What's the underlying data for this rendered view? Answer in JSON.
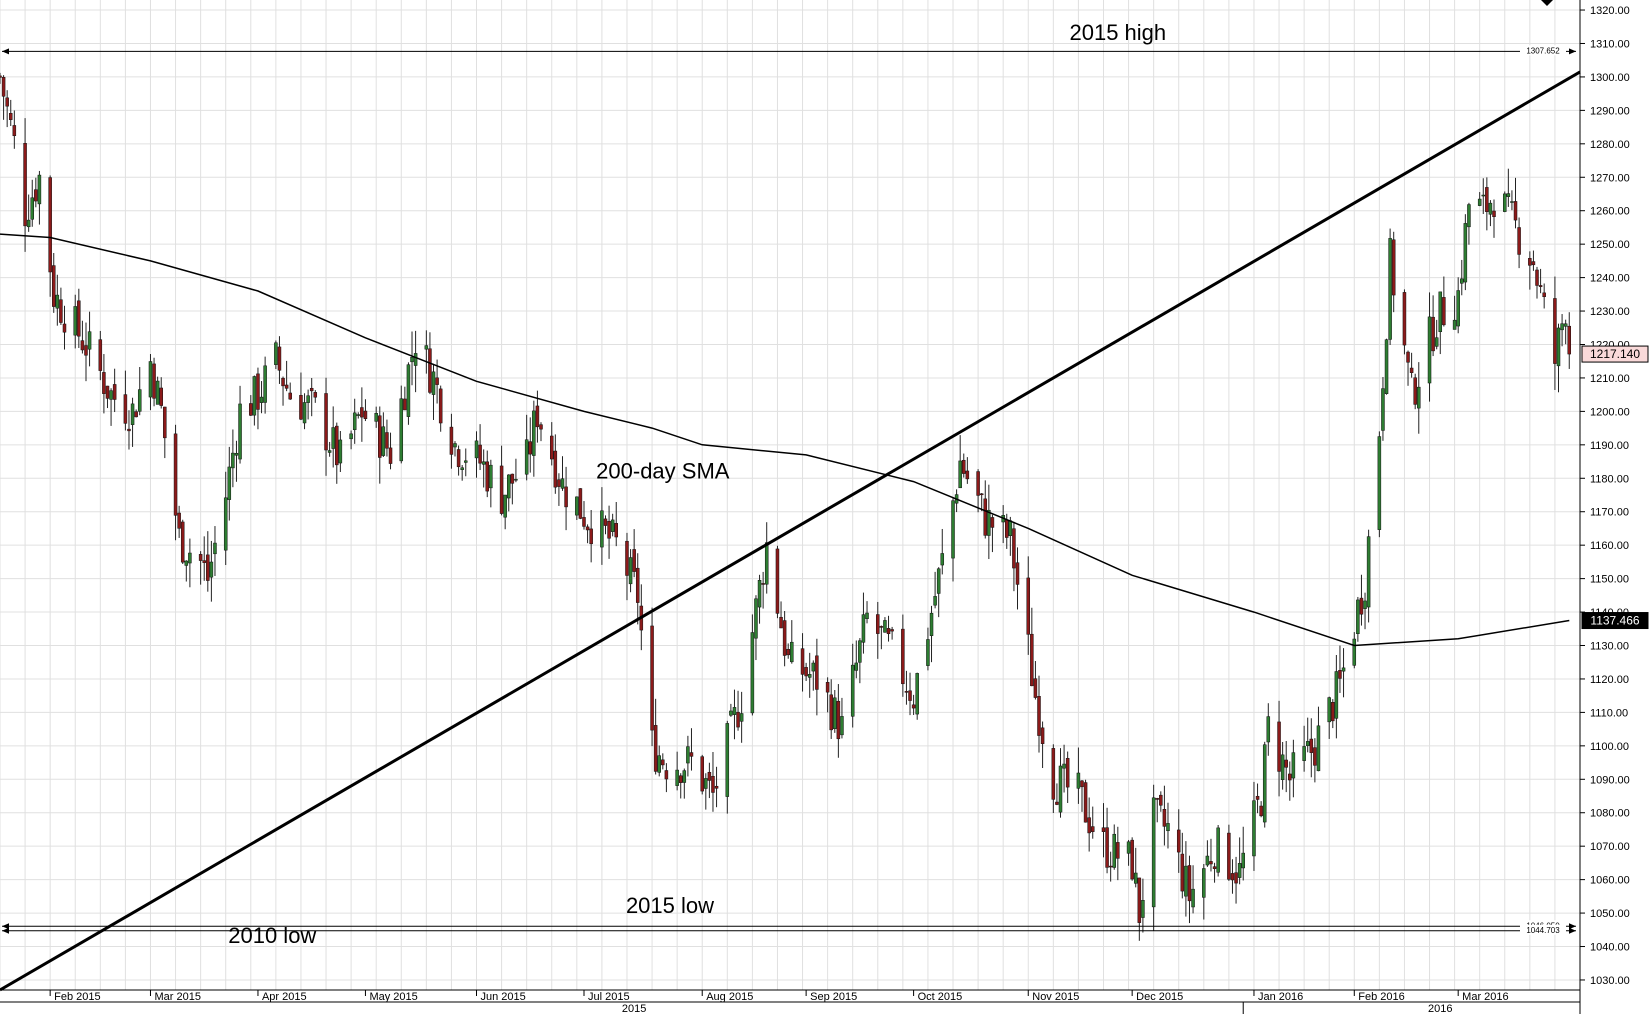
{
  "chart_data": {
    "type": "candlestick",
    "title": "",
    "xlabel": "",
    "ylabel": "",
    "ylim": [
      1027,
      1323
    ],
    "grid": true,
    "y_ticks": [
      1030,
      1040,
      1050,
      1060,
      1070,
      1080,
      1090,
      1100,
      1110,
      1120,
      1130,
      1140,
      1150,
      1160,
      1170,
      1180,
      1190,
      1200,
      1210,
      1220,
      1230,
      1240,
      1250,
      1260,
      1270,
      1280,
      1290,
      1300,
      1310,
      1320
    ],
    "y_tick_labels": [
      "1030.00",
      "1040.00",
      "1050.00",
      "1060.00",
      "1070.00",
      "1080.00",
      "1090.00",
      "1100.00",
      "1110.00",
      "1120.00",
      "1130.00",
      "1140.00",
      "1150.00",
      "1160.00",
      "1170.00",
      "1180.00",
      "1190.00",
      "1200.00",
      "1210.00",
      "1220.00",
      "1230.00",
      "1240.00",
      "1250.00",
      "1260.00",
      "1270.00",
      "1280.00",
      "1290.00",
      "1300.00",
      "1310.00",
      "1320.00"
    ],
    "x_range": [
      "2015-01-19",
      "2016-04-04"
    ],
    "month_ticks": [
      {
        "date": "2015-02-02",
        "label": "Feb 2015"
      },
      {
        "date": "2015-03-02",
        "label": "Mar 2015"
      },
      {
        "date": "2015-04-01",
        "label": "Apr 2015"
      },
      {
        "date": "2015-05-01",
        "label": "May 2015"
      },
      {
        "date": "2015-06-01",
        "label": "Jun 2015"
      },
      {
        "date": "2015-07-01",
        "label": "Jul 2015"
      },
      {
        "date": "2015-08-03",
        "label": "Aug 2015"
      },
      {
        "date": "2015-09-01",
        "label": "Sep 2015"
      },
      {
        "date": "2015-10-01",
        "label": "Oct 2015"
      },
      {
        "date": "2015-11-02",
        "label": "Nov 2015"
      },
      {
        "date": "2015-12-01",
        "label": "Dec 2015"
      },
      {
        "date": "2016-01-04",
        "label": "Jan 2016"
      },
      {
        "date": "2016-02-01",
        "label": "Feb 2016"
      },
      {
        "date": "2016-03-01",
        "label": "Mar 2016"
      }
    ],
    "year_labels": [
      {
        "label": "2015",
        "center": "2015-07-15"
      },
      {
        "label": "2016",
        "center": "2016-02-25"
      }
    ],
    "year_divider": "2016-01-01",
    "ohlc_pivots": [
      {
        "date": "2015-01-19",
        "value": 1300
      },
      {
        "date": "2015-01-23",
        "value": 1280
      },
      {
        "date": "2015-01-26",
        "value": 1260
      },
      {
        "date": "2015-01-30",
        "value": 1270
      },
      {
        "date": "2015-02-03",
        "value": 1235
      },
      {
        "date": "2015-02-06",
        "value": 1230
      },
      {
        "date": "2015-02-12",
        "value": 1220
      },
      {
        "date": "2015-02-19",
        "value": 1205
      },
      {
        "date": "2015-02-25",
        "value": 1200
      },
      {
        "date": "2015-03-02",
        "value": 1215
      },
      {
        "date": "2015-03-05",
        "value": 1200
      },
      {
        "date": "2015-03-10",
        "value": 1162
      },
      {
        "date": "2015-03-16",
        "value": 1155
      },
      {
        "date": "2015-03-18",
        "value": 1150
      },
      {
        "date": "2015-03-23",
        "value": 1175
      },
      {
        "date": "2015-03-27",
        "value": 1200
      },
      {
        "date": "2015-04-01",
        "value": 1205
      },
      {
        "date": "2015-04-06",
        "value": 1215
      },
      {
        "date": "2015-04-10",
        "value": 1205
      },
      {
        "date": "2015-04-17",
        "value": 1200
      },
      {
        "date": "2015-04-24",
        "value": 1185
      },
      {
        "date": "2015-04-30",
        "value": 1200
      },
      {
        "date": "2015-05-08",
        "value": 1188
      },
      {
        "date": "2015-05-15",
        "value": 1222
      },
      {
        "date": "2015-05-20",
        "value": 1210
      },
      {
        "date": "2015-05-26",
        "value": 1190
      },
      {
        "date": "2015-06-02",
        "value": 1185
      },
      {
        "date": "2015-06-08",
        "value": 1175
      },
      {
        "date": "2015-06-15",
        "value": 1185
      },
      {
        "date": "2015-06-18",
        "value": 1200
      },
      {
        "date": "2015-06-25",
        "value": 1178
      },
      {
        "date": "2015-07-02",
        "value": 1168
      },
      {
        "date": "2015-07-10",
        "value": 1160
      },
      {
        "date": "2015-07-16",
        "value": 1145
      },
      {
        "date": "2015-07-20",
        "value": 1100
      },
      {
        "date": "2015-07-24",
        "value": 1095
      },
      {
        "date": "2015-07-31",
        "value": 1095
      },
      {
        "date": "2015-08-06",
        "value": 1085
      },
      {
        "date": "2015-08-14",
        "value": 1115
      },
      {
        "date": "2015-08-21",
        "value": 1160
      },
      {
        "date": "2015-08-27",
        "value": 1125
      },
      {
        "date": "2015-09-04",
        "value": 1120
      },
      {
        "date": "2015-09-11",
        "value": 1105
      },
      {
        "date": "2015-09-18",
        "value": 1138
      },
      {
        "date": "2015-09-25",
        "value": 1128
      },
      {
        "date": "2015-10-01",
        "value": 1115
      },
      {
        "date": "2015-10-09",
        "value": 1155
      },
      {
        "date": "2015-10-14",
        "value": 1185
      },
      {
        "date": "2015-10-21",
        "value": 1168
      },
      {
        "date": "2015-10-28",
        "value": 1162
      },
      {
        "date": "2015-11-04",
        "value": 1115
      },
      {
        "date": "2015-11-09",
        "value": 1090
      },
      {
        "date": "2015-11-16",
        "value": 1085
      },
      {
        "date": "2015-11-23",
        "value": 1070
      },
      {
        "date": "2015-12-01",
        "value": 1065
      },
      {
        "date": "2015-12-03",
        "value": 1050
      },
      {
        "date": "2015-12-07",
        "value": 1078
      },
      {
        "date": "2015-12-11",
        "value": 1075
      },
      {
        "date": "2015-12-17",
        "value": 1055
      },
      {
        "date": "2015-12-24",
        "value": 1070
      },
      {
        "date": "2015-12-31",
        "value": 1062
      },
      {
        "date": "2016-01-06",
        "value": 1085
      },
      {
        "date": "2016-01-08",
        "value": 1105
      },
      {
        "date": "2016-01-14",
        "value": 1090
      },
      {
        "date": "2016-01-21",
        "value": 1100
      },
      {
        "date": "2016-01-28",
        "value": 1118
      },
      {
        "date": "2016-02-04",
        "value": 1150
      },
      {
        "date": "2016-02-08",
        "value": 1195
      },
      {
        "date": "2016-02-11",
        "value": 1245
      },
      {
        "date": "2016-02-17",
        "value": 1205
      },
      {
        "date": "2016-02-24",
        "value": 1228
      },
      {
        "date": "2016-03-01",
        "value": 1235
      },
      {
        "date": "2016-03-04",
        "value": 1262
      },
      {
        "date": "2016-03-08",
        "value": 1260
      },
      {
        "date": "2016-03-11",
        "value": 1265
      },
      {
        "date": "2016-03-17",
        "value": 1255
      },
      {
        "date": "2016-03-22",
        "value": 1245
      },
      {
        "date": "2016-03-28",
        "value": 1215
      },
      {
        "date": "2016-03-31",
        "value": 1232
      },
      {
        "date": "2016-04-01",
        "value": 1217.14
      }
    ],
    "sma_200": [
      {
        "date": "2015-01-19",
        "value": 1253
      },
      {
        "date": "2015-02-02",
        "value": 1252
      },
      {
        "date": "2015-03-02",
        "value": 1245
      },
      {
        "date": "2015-04-01",
        "value": 1236
      },
      {
        "date": "2015-05-01",
        "value": 1222
      },
      {
        "date": "2015-06-01",
        "value": 1209
      },
      {
        "date": "2015-07-01",
        "value": 1200
      },
      {
        "date": "2015-07-20",
        "value": 1195
      },
      {
        "date": "2015-08-03",
        "value": 1190
      },
      {
        "date": "2015-09-01",
        "value": 1187
      },
      {
        "date": "2015-10-01",
        "value": 1179
      },
      {
        "date": "2015-11-02",
        "value": 1165
      },
      {
        "date": "2015-12-01",
        "value": 1151
      },
      {
        "date": "2016-01-04",
        "value": 1140
      },
      {
        "date": "2016-02-01",
        "value": 1130
      },
      {
        "date": "2016-03-01",
        "value": 1132
      },
      {
        "date": "2016-04-01",
        "value": 1137.466
      }
    ],
    "trendline": [
      {
        "date": "2015-01-19",
        "value": 1027
      },
      {
        "date": "2016-04-04",
        "value": 1301.5
      }
    ],
    "levels": [
      {
        "name": "2015 high",
        "value": 1307.652,
        "label": "1307.652"
      },
      {
        "name": "2015 low",
        "value": 1046.05,
        "label": "1046.050"
      },
      {
        "name": "2010 low",
        "value": 1044.703,
        "label": "1044.703"
      }
    ],
    "price_tags": [
      {
        "name": "last-price",
        "value": 1217.14,
        "label": "1217.140",
        "bg": "#f9d9d9",
        "fg": "#000000",
        "border": "#000000"
      },
      {
        "name": "sma-value",
        "value": 1137.466,
        "label": "1137.466",
        "bg": "#000000",
        "fg": "#ffffff",
        "border": "#000000"
      }
    ],
    "annotations": [
      {
        "name": "sma-annotation",
        "text": "200-day SMA",
        "date": "2015-07-23",
        "value": 1180
      },
      {
        "name": "high-annotation",
        "text": "2015 high",
        "date": "2015-11-27",
        "value": 1311
      },
      {
        "name": "low2015-annotation",
        "text": "2015 low",
        "date": "2015-07-25",
        "value": 1050
      },
      {
        "name": "low2010-annotation",
        "text": "2010 low",
        "date": "2015-04-05",
        "value": 1041
      }
    ],
    "colors": {
      "bull": "#2e7d32",
      "bear": "#8b1a1a",
      "wick": "#222222",
      "grid": "#e0e0e0",
      "line": "#000000"
    }
  }
}
